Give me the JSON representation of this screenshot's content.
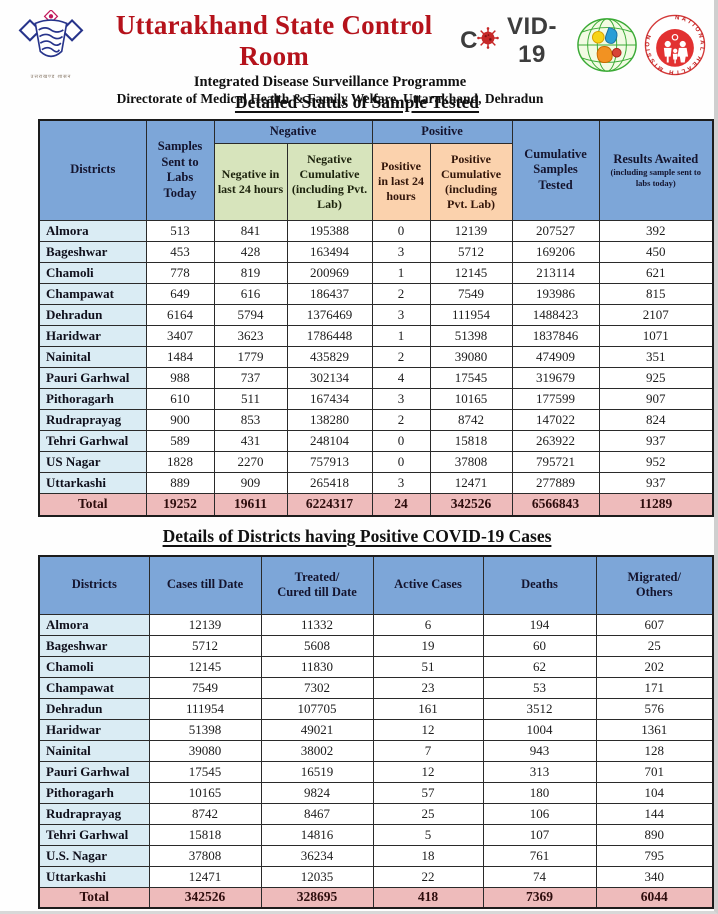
{
  "header": {
    "title_main": "Uttarakhand State Control Room",
    "covid_prefix": "C",
    "covid_suffix": "VID-19",
    "subtitle1": "Integrated Disease Surveillance Programme",
    "subtitle2": "Directorate of Medical Health & Family Welfare, Uttarakhand, Dehradun",
    "left_emblem_caption": "उत्तराखण्ड शासन",
    "nhm_ring_text": "NATIONAL HEALTH MISSION",
    "icons": [
      "uttarakhand-government-emblem",
      "coronavirus-icon",
      "idsp-globe-logo",
      "national-health-mission-logo"
    ]
  },
  "colors": {
    "title_red": "#b5121b",
    "header_blue": "#7da6d8",
    "negative_green": "#d7e4bc",
    "positive_peach": "#fbd2ad",
    "district_blue": "#daecf4",
    "total_pink": "#eebbbb",
    "virus_red": "#c62828"
  },
  "section_samples": {
    "title": "Detailed Status of Sample Tested",
    "table": {
      "headers": {
        "districts": "Districts",
        "samples_sent": "Samples Sent to Labs Today",
        "negative_group": "Negative",
        "negative_24h": "Negative in last 24 hours",
        "negative_cumulative": "Negative Cumulative (including Pvt. Lab)",
        "positive_group": "Positive",
        "positive_24h": "Positive in last 24 hours",
        "positive_cumulative": "Positive Cumulative (including Pvt. Lab)",
        "cumulative_tested": "Cumulative Samples Tested",
        "results_awaited": "Results Awaited",
        "results_awaited_note": "(including sample sent to labs today)"
      },
      "rows": [
        [
          "Almora",
          "513",
          "841",
          "195388",
          "0",
          "12139",
          "207527",
          "392"
        ],
        [
          "Bageshwar",
          "453",
          "428",
          "163494",
          "3",
          "5712",
          "169206",
          "450"
        ],
        [
          "Chamoli",
          "778",
          "819",
          "200969",
          "1",
          "12145",
          "213114",
          "621"
        ],
        [
          "Champawat",
          "649",
          "616",
          "186437",
          "2",
          "7549",
          "193986",
          "815"
        ],
        [
          "Dehradun",
          "6164",
          "5794",
          "1376469",
          "3",
          "111954",
          "1488423",
          "2107"
        ],
        [
          "Haridwar",
          "3407",
          "3623",
          "1786448",
          "1",
          "51398",
          "1837846",
          "1071"
        ],
        [
          "Nainital",
          "1484",
          "1779",
          "435829",
          "2",
          "39080",
          "474909",
          "351"
        ],
        [
          "Pauri Garhwal",
          "988",
          "737",
          "302134",
          "4",
          "17545",
          "319679",
          "925"
        ],
        [
          "Pithoragarh",
          "610",
          "511",
          "167434",
          "3",
          "10165",
          "177599",
          "907"
        ],
        [
          "Rudraprayag",
          "900",
          "853",
          "138280",
          "2",
          "8742",
          "147022",
          "824"
        ],
        [
          "Tehri Garhwal",
          "589",
          "431",
          "248104",
          "0",
          "15818",
          "263922",
          "937"
        ],
        [
          "US Nagar",
          "1828",
          "2270",
          "757913",
          "0",
          "37808",
          "795721",
          "952"
        ],
        [
          "Uttarkashi",
          "889",
          "909",
          "265418",
          "3",
          "12471",
          "277889",
          "937"
        ]
      ],
      "total": [
        "Total",
        "19252",
        "19611",
        "6224317",
        "24",
        "342526",
        "6566843",
        "11289"
      ]
    }
  },
  "section_cases": {
    "title": "Details of Districts having Positive COVID-19 Cases",
    "table": {
      "headers": [
        "Districts",
        "Cases till Date",
        "Treated/\nCured till Date",
        "Active Cases",
        "Deaths",
        "Migrated/\nOthers"
      ],
      "rows": [
        [
          "Almora",
          "12139",
          "11332",
          "6",
          "194",
          "607"
        ],
        [
          "Bageshwar",
          "5712",
          "5608",
          "19",
          "60",
          "25"
        ],
        [
          "Chamoli",
          "12145",
          "11830",
          "51",
          "62",
          "202"
        ],
        [
          "Champawat",
          "7549",
          "7302",
          "23",
          "53",
          "171"
        ],
        [
          "Dehradun",
          "111954",
          "107705",
          "161",
          "3512",
          "576"
        ],
        [
          "Haridwar",
          "51398",
          "49021",
          "12",
          "1004",
          "1361"
        ],
        [
          "Nainital",
          "39080",
          "38002",
          "7",
          "943",
          "128"
        ],
        [
          "Pauri Garhwal",
          "17545",
          "16519",
          "12",
          "313",
          "701"
        ],
        [
          "Pithoragarh",
          "10165",
          "9824",
          "57",
          "180",
          "104"
        ],
        [
          "Rudraprayag",
          "8742",
          "8467",
          "25",
          "106",
          "144"
        ],
        [
          "Tehri Garhwal",
          "15818",
          "14816",
          "5",
          "107",
          "890"
        ],
        [
          "U.S. Nagar",
          "37808",
          "36234",
          "18",
          "761",
          "795"
        ],
        [
          "Uttarkashi",
          "12471",
          "12035",
          "22",
          "74",
          "340"
        ]
      ],
      "total": [
        "Total",
        "342526",
        "328695",
        "418",
        "7369",
        "6044"
      ]
    }
  }
}
